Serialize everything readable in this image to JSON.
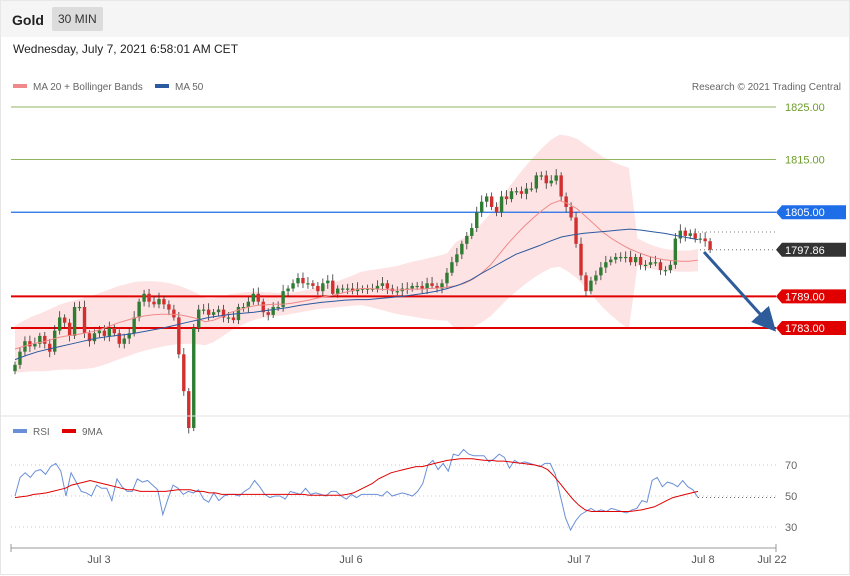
{
  "header": {
    "instrument": "Gold",
    "timeframe": "30 MIN",
    "datetime": "Wednesday, July 7, 2021 6:58:01 AM CET"
  },
  "legend": {
    "ma20": "MA 20 + Bollinger Bands",
    "ma50": "MA 50",
    "credit": "Research © 2021 Trading Central",
    "rsi": "RSI",
    "rsi_ma": "9MA"
  },
  "colors": {
    "ma20": "#f08a8a",
    "ma50": "#2c5aa0",
    "bands": "#fde3e3",
    "up": "#2e7d32",
    "down": "#d32f2f",
    "resistance": "#6c9e2a",
    "blue_level": "#1e6ee8",
    "support": "#e00000",
    "last": "#333333",
    "rsi": "#6a8fd8",
    "rsi_ma": "#e00000",
    "arrow": "#2e5b9a"
  },
  "chart_data": [
    {
      "type": "candlestick",
      "title": "Gold 30 MIN",
      "x_labels": [
        "Jul 3",
        "Jul 6",
        "Jul 7",
        "Jul 8",
        "Jul 22"
      ],
      "ylim": [
        1757.6,
        1826.5
      ],
      "levels": [
        {
          "value": 1825.0,
          "label": "1825.00",
          "kind": "resistance"
        },
        {
          "value": 1815.0,
          "label": "1815.00",
          "kind": "resistance"
        },
        {
          "value": 1805.0,
          "label": "1805.00",
          "kind": "pivot"
        },
        {
          "value": 1797.86,
          "label": "1797.86",
          "kind": "last"
        },
        {
          "value": 1789.0,
          "label": "1789.00",
          "kind": "support"
        },
        {
          "value": 1783.0,
          "label": "1783.00",
          "kind": "support"
        }
      ],
      "close": [
        1776,
        1778.5,
        1780.5,
        1779.5,
        1780,
        1781.5,
        1780,
        1778.5,
        1782.5,
        1785,
        1784,
        1781.5,
        1787,
        1787,
        1782,
        1780.5,
        1782,
        1782.5,
        1781.5,
        1783,
        1782,
        1780,
        1781,
        1782,
        1785,
        1788,
        1789.5,
        1788,
        1787.5,
        1788.5,
        1787.5,
        1786.5,
        1785,
        1778,
        1771,
        1764,
        1783,
        1786.5,
        1786.5,
        1785.5,
        1786,
        1786.5,
        1785,
        1785,
        1784.5,
        1787,
        1787,
        1788,
        1789.5,
        1788,
        1786,
        1785.5,
        1787,
        1787,
        1790,
        1790.5,
        1791.5,
        1792.5,
        1791.5,
        1791.5,
        1791,
        1790,
        1791.5,
        1792,
        1789.5,
        1790.5,
        1790.5,
        1790.5,
        1790,
        1790.5,
        1790.5,
        1790.5,
        1790.5,
        1791,
        1791.5,
        1790.5,
        1790,
        1790,
        1790.5,
        1790.5,
        1791,
        1791,
        1790.5,
        1791.5,
        1791,
        1790.5,
        1791.5,
        1793.5,
        1795.5,
        1797,
        1799,
        1800.5,
        1802,
        1805,
        1807,
        1808,
        1806,
        1805,
        1808,
        1807.5,
        1809,
        1809,
        1808.5,
        1809.5,
        1809.5,
        1812,
        1812,
        1810.5,
        1811,
        1812,
        1808,
        1806,
        1804,
        1799,
        1793,
        1790,
        1792,
        1793,
        1794.5,
        1795.5,
        1796,
        1796.5,
        1796.5,
        1796.5,
        1795.5,
        1796.5,
        1795,
        1795,
        1795.5,
        1795.5,
        1794,
        1794,
        1795,
        1800,
        1801.5,
        1800.5,
        1801,
        1800,
        1800,
        1799.5,
        1797.86
      ],
      "ma20": [
        1779,
        1779.5,
        1780,
        1780.3,
        1780.7,
        1781.2,
        1781.5,
        1781.7,
        1782,
        1782.3,
        1782.8,
        1783.4,
        1784,
        1784.5,
        1785,
        1785.3,
        1785.5,
        1785.6,
        1785.6,
        1785.5,
        1785.2,
        1784.8,
        1784.2,
        1784.5,
        1785.2,
        1786,
        1786.5,
        1787,
        1787.3,
        1787.4,
        1787.5,
        1787.5,
        1787.7,
        1788,
        1788.3,
        1788.7,
        1789,
        1789.3,
        1789.7,
        1790.1,
        1790.5,
        1790.5,
        1790.4,
        1790.3,
        1790.2,
        1790.3,
        1790.4,
        1790.4,
        1790.5,
        1790.6,
        1790.8,
        1791,
        1791.5,
        1792.3,
        1793.5,
        1795,
        1797,
        1799,
        1800.8,
        1802.5,
        1804,
        1805.4,
        1806.6,
        1807.2,
        1806.6,
        1805.7,
        1804.2,
        1802.7,
        1801.2,
        1800,
        1799,
        1798.1,
        1797.4,
        1796.8,
        1796.3,
        1796,
        1795.8,
        1795.7,
        1795.7,
        1795.9
      ],
      "ma50": [
        1777,
        1777.8,
        1778.5,
        1779,
        1779.5,
        1780,
        1780.5,
        1781,
        1781.3,
        1781.6,
        1781.8,
        1782.2,
        1782.6,
        1783,
        1783.5,
        1784,
        1784.5,
        1785,
        1785.3,
        1785.6,
        1785.8,
        1786,
        1786.3,
        1786.6,
        1786.9,
        1787.3,
        1787.6,
        1787.9,
        1788.1,
        1788.3,
        1788.4,
        1788.4,
        1788.6,
        1788.8,
        1789,
        1789.3,
        1789.6,
        1790,
        1790.5,
        1791.2,
        1792.1,
        1793.4,
        1794.6,
        1795.8,
        1797,
        1797.8,
        1798.6,
        1799.5,
        1800.3,
        1800.7,
        1801,
        1801.2,
        1801.4,
        1801.6,
        1801.8,
        1801.6,
        1801.3,
        1801,
        1800.6,
        1800.2,
        1799.8
      ],
      "rsi_axis": [
        30,
        50,
        70
      ]
    },
    {
      "type": "line",
      "title": "RSI",
      "series": [
        {
          "name": "RSI"
        },
        {
          "name": "9MA"
        }
      ],
      "ylim": [
        30,
        70
      ],
      "rsi": [
        50,
        62,
        65,
        62,
        66,
        67,
        64,
        69,
        71,
        66,
        50,
        65,
        59,
        53,
        52,
        50,
        57,
        55,
        55,
        47,
        61,
        56,
        53,
        53,
        61,
        59,
        60,
        57,
        54,
        38,
        48,
        57,
        55,
        51,
        53,
        52,
        54,
        48,
        46,
        52,
        47,
        50,
        51,
        51,
        50,
        53,
        55,
        60,
        56,
        51,
        49,
        50,
        50,
        48,
        53,
        52,
        51,
        55,
        51,
        52,
        51,
        50,
        53,
        53,
        50,
        48,
        51,
        49,
        51,
        51,
        51,
        51,
        50,
        53,
        50,
        51,
        52,
        51,
        50,
        53,
        58,
        70,
        73,
        67,
        71,
        66,
        77,
        76,
        80,
        77,
        76,
        76,
        76,
        72,
        74,
        77,
        75,
        68,
        73,
        71,
        72,
        71,
        70,
        69,
        71,
        71,
        64,
        50,
        36,
        28,
        34,
        38,
        40,
        42,
        40,
        41,
        40,
        42,
        41,
        40,
        39,
        41,
        42,
        47,
        46,
        60,
        62,
        56,
        59,
        58,
        56,
        60,
        56,
        54,
        49
      ],
      "rsi_ma": [
        49,
        49.5,
        50,
        51,
        51.5,
        52,
        53,
        54,
        55,
        57,
        58,
        59,
        60,
        59,
        58,
        57,
        56,
        55,
        54,
        54,
        53,
        53,
        53,
        53,
        53,
        53.5,
        54,
        54,
        54,
        53,
        53,
        52,
        52,
        51,
        51,
        51,
        51,
        51,
        51,
        51,
        51,
        51,
        51,
        51,
        51,
        51,
        51,
        50.5,
        50.5,
        50.5,
        50.5,
        50.5,
        50.5,
        51,
        52,
        54,
        56,
        58,
        61,
        63,
        65,
        66,
        67,
        68,
        69,
        69,
        70,
        71,
        72,
        73,
        73.5,
        74,
        74,
        74,
        73.5,
        73,
        73,
        72.5,
        72.5,
        72,
        71.5,
        71,
        70.5,
        70,
        69,
        67,
        63,
        58,
        53,
        48,
        44,
        41,
        40,
        40,
        40,
        40,
        40,
        40,
        40,
        40.5,
        41,
        42,
        43,
        45,
        47,
        49,
        50,
        51,
        52,
        53
      ]
    }
  ]
}
